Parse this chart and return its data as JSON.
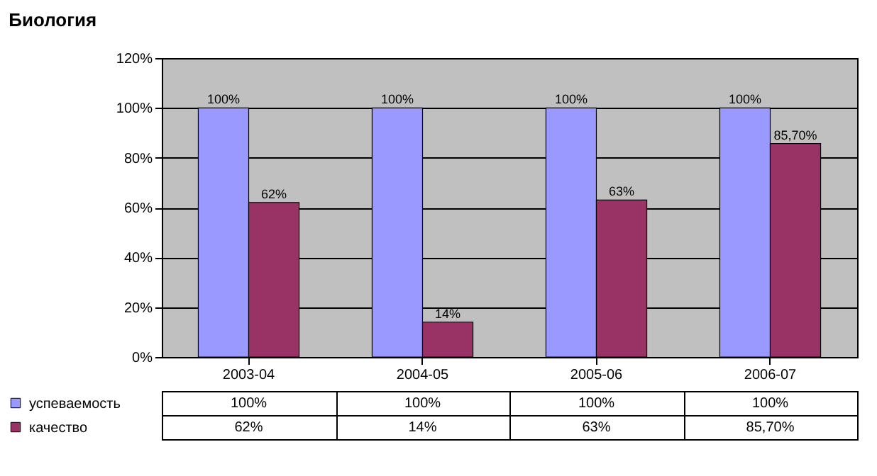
{
  "chart_data": {
    "type": "bar",
    "title": "Биология",
    "categories": [
      "2003-04",
      "2004-05",
      "2005-06",
      "2006-07"
    ],
    "series": [
      {
        "name": "успеваемость",
        "color": "#9999ff",
        "values": [
          100,
          100,
          100,
          100
        ],
        "value_labels": [
          "100%",
          "100%",
          "100%",
          "100%"
        ]
      },
      {
        "name": "качество",
        "color": "#993366",
        "values": [
          62,
          14,
          63,
          85.7
        ],
        "value_labels": [
          "62%",
          "14%",
          "63%",
          "85,70%"
        ]
      }
    ],
    "ylim": [
      0,
      120
    ],
    "yticks": [
      {
        "value": 0,
        "label": "0%"
      },
      {
        "value": 20,
        "label": "20%"
      },
      {
        "value": 40,
        "label": "40%"
      },
      {
        "value": 60,
        "label": "60%"
      },
      {
        "value": 80,
        "label": "80%"
      },
      {
        "value": 100,
        "label": "100%"
      },
      {
        "value": 120,
        "label": "120%"
      }
    ],
    "grid": "y",
    "legend": "bottom left"
  }
}
